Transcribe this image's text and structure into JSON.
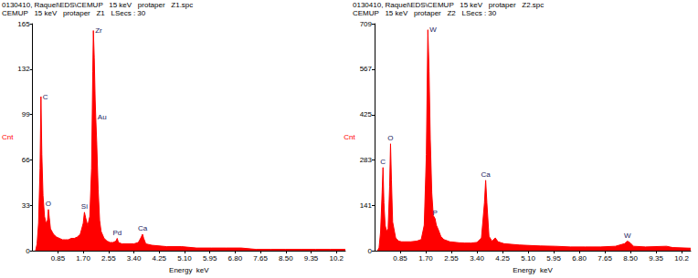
{
  "chart_data": [
    {
      "type": "area",
      "title": "0130410, Raquel\\EDS\\CEMUP   15 keV   protaper   Z1.spc",
      "subtitle": "CEMUP   15 keV   protaper   Z1   LSecs : 30",
      "x_label": "Energy  keV",
      "y_label": "Cnt",
      "color": "#ff0000",
      "grid": false,
      "xlim": [
        0,
        10.5
      ],
      "xticks": [
        {
          "value": 0.85,
          "label": "0.85"
        },
        {
          "value": 1.7,
          "label": "1.70"
        },
        {
          "value": 2.55,
          "label": "2.55"
        },
        {
          "value": 3.4,
          "label": "3.40"
        },
        {
          "value": 4.25,
          "label": "4.25"
        },
        {
          "value": 5.1,
          "label": "5.10"
        },
        {
          "value": 5.95,
          "label": "5.95"
        },
        {
          "value": 6.8,
          "label": "6.80"
        },
        {
          "value": 7.65,
          "label": "7.65"
        },
        {
          "value": 8.5,
          "label": "8.50"
        },
        {
          "value": 9.35,
          "label": "9.35"
        },
        10.2
      ],
      "ylim": [
        0,
        165
      ],
      "yticks": [
        0,
        33,
        66,
        99,
        132,
        165
      ],
      "x": [
        0.1,
        0.15,
        0.2,
        0.25,
        0.28,
        0.31,
        0.35,
        0.4,
        0.45,
        0.5,
        0.53,
        0.56,
        0.6,
        0.7,
        0.8,
        0.9,
        1.0,
        1.1,
        1.2,
        1.3,
        1.4,
        1.5,
        1.6,
        1.7,
        1.74,
        1.78,
        1.85,
        1.92,
        1.98,
        2.02,
        2.04,
        2.07,
        2.1,
        2.12,
        2.15,
        2.2,
        2.25,
        2.3,
        2.4,
        2.5,
        2.6,
        2.7,
        2.8,
        2.84,
        2.88,
        3.0,
        3.2,
        3.4,
        3.55,
        3.65,
        3.69,
        3.73,
        3.8,
        4.0,
        4.5,
        5.0,
        5.5,
        6.0,
        6.5,
        7.0,
        7.5,
        8.0,
        8.5,
        9.0,
        9.5,
        10.0,
        10.5
      ],
      "values": [
        0,
        5,
        20,
        60,
        112,
        70,
        40,
        25,
        20,
        22,
        30,
        24,
        16,
        12,
        10,
        9,
        8,
        8,
        8,
        9,
        9,
        10,
        12,
        20,
        28,
        24,
        18,
        25,
        60,
        130,
        160,
        140,
        110,
        97,
        80,
        45,
        22,
        14,
        9,
        7,
        6,
        6,
        7,
        9,
        6,
        5,
        5,
        5,
        6,
        10,
        12,
        9,
        5,
        4,
        3,
        3,
        2,
        2,
        2,
        2,
        1,
        1,
        1,
        1,
        1,
        1,
        1
      ],
      "annotations": [
        {
          "text": "C",
          "x": 0.28,
          "y": 112
        },
        {
          "text": "O",
          "x": 0.53,
          "y": 30
        },
        {
          "text": "Si",
          "x": 1.74,
          "y": 28
        },
        {
          "text": "Zr",
          "x": 2.04,
          "y": 160
        },
        {
          "text": "Au",
          "x": 2.12,
          "y": 97
        },
        {
          "text": "Pd",
          "x": 2.84,
          "y": 9
        },
        {
          "text": "Ca",
          "x": 3.69,
          "y": 12
        }
      ]
    },
    {
      "type": "area",
      "title": "0130410, Raquel\\EDS\\CEMUP   15 keV   protaper   Z2.spc",
      "subtitle": "CEMUP   15 keV   protaper   Z2   LSecs : 30",
      "x_label": "Energy  keV",
      "y_label": "Cnt",
      "color": "#ff0000",
      "grid": false,
      "xlim": [
        0,
        10.5
      ],
      "xticks": [
        {
          "value": 0.85,
          "label": "0.85"
        },
        {
          "value": 1.7,
          "label": "1.70"
        },
        {
          "value": 2.55,
          "label": "2.55"
        },
        {
          "value": 3.4,
          "label": "3.40"
        },
        {
          "value": 4.25,
          "label": "4.25"
        },
        {
          "value": 5.1,
          "label": "5.10"
        },
        {
          "value": 5.95,
          "label": "5.95"
        },
        {
          "value": 6.8,
          "label": "6.80"
        },
        {
          "value": 7.65,
          "label": "7.65"
        },
        {
          "value": 8.5,
          "label": "8.50"
        },
        {
          "value": 9.35,
          "label": "9.35"
        },
        10.2
      ],
      "ylim": [
        0,
        709
      ],
      "yticks": [
        0,
        141,
        283,
        425,
        567,
        709
      ],
      "x": [
        0.1,
        0.15,
        0.2,
        0.25,
        0.28,
        0.31,
        0.35,
        0.4,
        0.45,
        0.5,
        0.53,
        0.56,
        0.6,
        0.7,
        0.8,
        0.9,
        1.0,
        1.2,
        1.4,
        1.55,
        1.65,
        1.72,
        1.77,
        1.81,
        1.85,
        1.9,
        1.95,
        2.01,
        2.05,
        2.1,
        2.2,
        2.3,
        2.5,
        2.8,
        3.0,
        3.2,
        3.4,
        3.55,
        3.65,
        3.69,
        3.73,
        3.8,
        3.9,
        4.01,
        4.1,
        4.3,
        4.8,
        5.5,
        6.0,
        6.5,
        7.0,
        7.5,
        8.0,
        8.3,
        8.4,
        8.5,
        8.6,
        9.0,
        9.7,
        9.9,
        10.5
      ],
      "values": [
        0,
        10,
        60,
        180,
        260,
        150,
        80,
        60,
        70,
        200,
        334,
        220,
        90,
        40,
        30,
        28,
        28,
        28,
        30,
        35,
        80,
        300,
        690,
        560,
        350,
        180,
        110,
        100,
        80,
        70,
        45,
        35,
        28,
        25,
        24,
        24,
        26,
        40,
        150,
        220,
        150,
        45,
        30,
        40,
        28,
        22,
        18,
        15,
        14,
        12,
        12,
        12,
        14,
        22,
        30,
        24,
        14,
        12,
        14,
        10,
        8
      ],
      "annotations": [
        {
          "text": "C",
          "x": 0.28,
          "y": 260
        },
        {
          "text": "O",
          "x": 0.53,
          "y": 334
        },
        {
          "text": "W",
          "x": 1.77,
          "y": 690
        },
        {
          "text": "P",
          "x": 2.01,
          "y": 100
        },
        {
          "text": "Ca",
          "x": 3.69,
          "y": 220
        },
        {
          "text": "W",
          "x": 8.4,
          "y": 30
        }
      ]
    }
  ]
}
